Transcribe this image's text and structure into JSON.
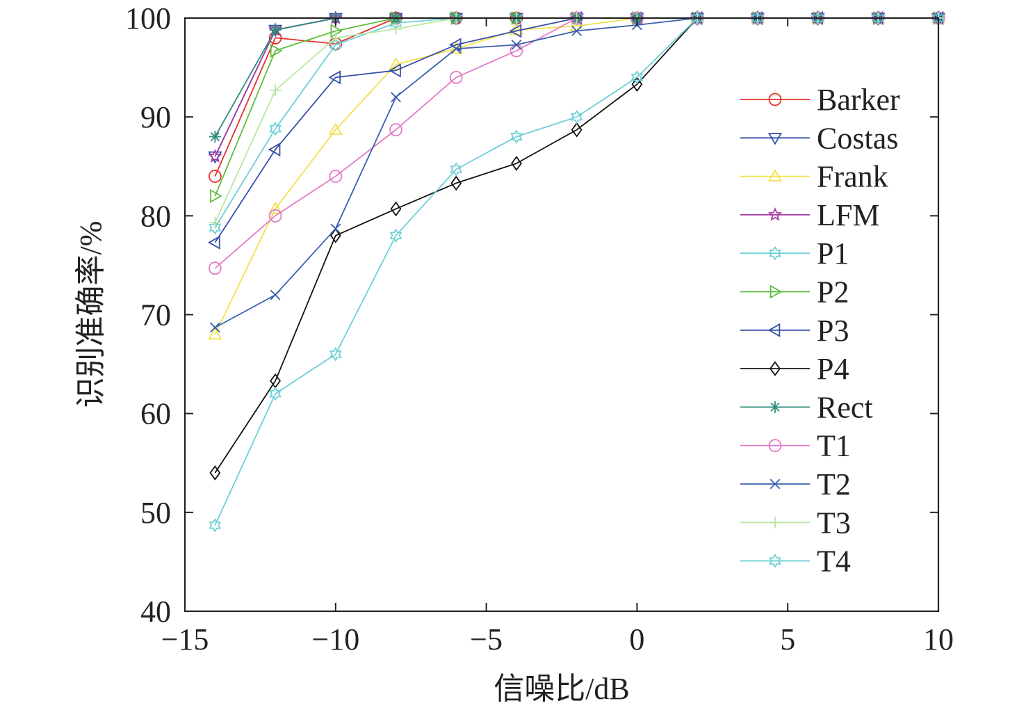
{
  "chart_data": {
    "type": "line",
    "xlabel": "信噪比/dB",
    "ylabel": "识别准确率/%",
    "xlim": [
      -15,
      10
    ],
    "ylim": [
      40,
      100
    ],
    "xticks": [
      -15,
      -10,
      -5,
      0,
      5,
      10
    ],
    "xtick_labels": [
      "−15",
      "−10",
      "−5",
      "0",
      "5",
      "10"
    ],
    "yticks": [
      40,
      50,
      60,
      70,
      80,
      90,
      100
    ],
    "ytick_labels": [
      "40",
      "50",
      "60",
      "70",
      "80",
      "90",
      "100"
    ],
    "grid": false,
    "legend_position": "right",
    "x": [
      -14,
      -12,
      -10,
      -8,
      -6,
      -4,
      -2,
      0,
      2,
      4,
      6,
      8,
      10
    ],
    "series": [
      {
        "name": "Barker",
        "color": "#e8302a",
        "marker": "circle",
        "values": [
          84,
          98,
          97.4,
          100,
          100,
          100,
          100,
          100,
          100,
          100,
          100,
          100,
          100
        ]
      },
      {
        "name": "Costas",
        "color": "#3550a8",
        "marker": "triangle-down",
        "values": [
          86,
          98.8,
          100,
          100,
          100,
          100,
          100,
          100,
          100,
          100,
          100,
          100,
          100
        ]
      },
      {
        "name": "Frank",
        "color": "#f2e04a",
        "marker": "triangle-up",
        "values": [
          68,
          80.7,
          88.7,
          95.3,
          96.9,
          98.8,
          99.2,
          100,
          100,
          100,
          100,
          100,
          100
        ]
      },
      {
        "name": "LFM",
        "color": "#a43ca4",
        "marker": "star5",
        "values": [
          86,
          98.8,
          100,
          100,
          100,
          100,
          100,
          100,
          100,
          100,
          100,
          100,
          100
        ]
      },
      {
        "name": "P1",
        "color": "#6ccfd6",
        "marker": "hexagram",
        "values": [
          78.8,
          88.8,
          97.3,
          99.5,
          100,
          100,
          100,
          100,
          100,
          100,
          100,
          100,
          100
        ]
      },
      {
        "name": "P2",
        "color": "#5cbe3c",
        "marker": "triangle-right",
        "values": [
          82,
          96.7,
          98.7,
          100,
          100,
          100,
          100,
          100,
          100,
          100,
          100,
          100,
          100
        ]
      },
      {
        "name": "P3",
        "color": "#3550a8",
        "marker": "triangle-left",
        "values": [
          77.3,
          86.7,
          94,
          94.7,
          97.3,
          98.7,
          100,
          100,
          100,
          100,
          100,
          100,
          100
        ]
      },
      {
        "name": "P4",
        "color": "#111111",
        "marker": "diamond",
        "values": [
          54,
          63.3,
          78,
          80.7,
          83.3,
          85.3,
          88.7,
          93.3,
          100,
          100,
          100,
          100,
          100
        ]
      },
      {
        "name": "Rect",
        "color": "#2e8b7a",
        "marker": "asterisk",
        "values": [
          88,
          98.8,
          100,
          100,
          100,
          100,
          100,
          100,
          100,
          100,
          100,
          100,
          100
        ]
      },
      {
        "name": "T1",
        "color": "#e47ac8",
        "marker": "circle",
        "values": [
          74.7,
          80,
          84,
          88.7,
          94,
          96.7,
          100,
          100,
          100,
          100,
          100,
          100,
          100
        ]
      },
      {
        "name": "T2",
        "color": "#3a5fb0",
        "marker": "x",
        "values": [
          68.7,
          72,
          78.7,
          92,
          96.9,
          97.3,
          98.7,
          99.3,
          100,
          100,
          100,
          100,
          100
        ]
      },
      {
        "name": "T3",
        "color": "#b9e6a4",
        "marker": "plus",
        "values": [
          79.3,
          92.7,
          98,
          98.9,
          100,
          100,
          100,
          100,
          100,
          100,
          100,
          100,
          100
        ]
      },
      {
        "name": "T4",
        "color": "#6ccfd6",
        "marker": "hexagram",
        "values": [
          48.7,
          62,
          66,
          78,
          84.7,
          88,
          90,
          94,
          100,
          100,
          100,
          100,
          100
        ]
      }
    ]
  }
}
